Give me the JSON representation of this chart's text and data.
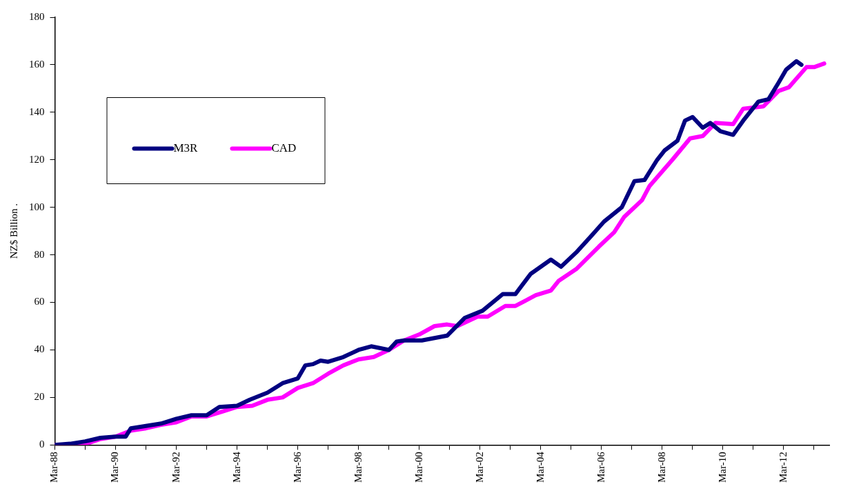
{
  "chart_data": {
    "type": "line",
    "ylabel": "NZ$ Billion .",
    "xlim": [
      "1988-03",
      "2013-09"
    ],
    "ylim": [
      0,
      180
    ],
    "yticks": [
      0,
      20,
      40,
      60,
      80,
      100,
      120,
      140,
      160,
      180
    ],
    "xticks": [
      {
        "value": "1988-03",
        "label": "Mar-88"
      },
      {
        "value": "1989-03",
        "label": null
      },
      {
        "value": "1990-03",
        "label": "Mar-90"
      },
      {
        "value": "1991-03",
        "label": null
      },
      {
        "value": "1992-03",
        "label": "Mar-92"
      },
      {
        "value": "1993-03",
        "label": null
      },
      {
        "value": "1994-03",
        "label": "Mar-94"
      },
      {
        "value": "1995-03",
        "label": null
      },
      {
        "value": "1996-03",
        "label": "Mar-96"
      },
      {
        "value": "1997-03",
        "label": null
      },
      {
        "value": "1998-03",
        "label": "Mar-98"
      },
      {
        "value": "1999-03",
        "label": null
      },
      {
        "value": "2000-03",
        "label": "Mar-00"
      },
      {
        "value": "2001-03",
        "label": null
      },
      {
        "value": "2002-03",
        "label": "Mar-02"
      },
      {
        "value": "2003-03",
        "label": null
      },
      {
        "value": "2004-03",
        "label": "Mar-04"
      },
      {
        "value": "2005-03",
        "label": null
      },
      {
        "value": "2006-03",
        "label": "Mar-06"
      },
      {
        "value": "2007-03",
        "label": null
      },
      {
        "value": "2008-03",
        "label": "Mar-08"
      },
      {
        "value": "2009-03",
        "label": null
      },
      {
        "value": "2010-03",
        "label": "Mar-10"
      },
      {
        "value": "2011-03",
        "label": null
      },
      {
        "value": "2012-03",
        "label": "Mar-12"
      },
      {
        "value": "2013-03",
        "label": null
      }
    ],
    "grid": false,
    "legend": "top left",
    "marker": "none",
    "line_style": "solid",
    "series": [
      {
        "name": "M3R",
        "color": "#000080",
        "x": [
          "1988-03",
          "1988-09",
          "1989-03",
          "1989-09",
          "1990-03",
          "1990-07",
          "1990-09",
          "1991-03",
          "1991-09",
          "1992-03",
          "1992-09",
          "1993-03",
          "1993-08",
          "1994-03",
          "1994-08",
          "1995-03",
          "1995-09",
          "1996-03",
          "1996-06",
          "1996-09",
          "1996-12",
          "1997-03",
          "1997-09",
          "1998-03",
          "1998-08",
          "1999-03",
          "1999-06",
          "1999-09",
          "2000-04",
          "2000-09",
          "2001-02",
          "2001-09",
          "2002-04",
          "2002-12",
          "2003-05",
          "2003-11",
          "2004-07",
          "2004-11",
          "2005-05",
          "2005-11",
          "2006-04",
          "2006-11",
          "2007-04",
          "2007-08",
          "2008-01",
          "2008-04",
          "2008-09",
          "2008-12",
          "2009-03",
          "2009-07",
          "2009-10",
          "2010-02",
          "2010-07",
          "2010-11",
          "2011-05",
          "2011-09",
          "2012-01",
          "2012-04",
          "2012-08",
          "2012-10"
        ],
        "values": [
          0,
          0.5,
          1.5,
          3,
          3.5,
          3.5,
          7,
          8,
          9,
          11,
          12.5,
          12.5,
          16,
          16.5,
          19,
          22,
          26,
          28,
          33.5,
          34,
          35.5,
          35,
          37,
          40,
          41.5,
          40,
          43.5,
          44,
          44,
          45,
          46,
          53.5,
          56.5,
          63.5,
          63.5,
          72,
          78,
          75,
          81,
          88,
          94,
          100,
          111,
          111.5,
          120,
          124,
          128,
          136.5,
          138,
          133.5,
          135.5,
          132,
          130.5,
          136.5,
          144.5,
          145.5,
          152.5,
          158,
          161.5,
          160
        ]
      },
      {
        "name": "CAD",
        "color": "#ff00ff",
        "x": [
          "1988-03",
          "1989-03",
          "1989-09",
          "1990-03",
          "1990-09",
          "1991-03",
          "1991-09",
          "1992-03",
          "1992-09",
          "1993-03",
          "1993-09",
          "1994-03",
          "1994-09",
          "1995-03",
          "1995-09",
          "1996-03",
          "1996-09",
          "1997-03",
          "1997-09",
          "1998-03",
          "1998-09",
          "1999-03",
          "1999-09",
          "2000-03",
          "2000-09",
          "2001-02",
          "2001-06",
          "2002-02",
          "2002-06",
          "2003-01",
          "2003-05",
          "2004-01",
          "2004-07",
          "2004-10",
          "2005-05",
          "2006-02",
          "2006-08",
          "2006-12",
          "2007-07",
          "2007-10",
          "2008-07",
          "2009-02",
          "2009-07",
          "2009-12",
          "2010-07",
          "2010-11",
          "2011-07",
          "2012-01",
          "2012-05",
          "2012-12",
          "2013-03",
          "2013-07"
        ],
        "values": [
          0,
          0.3,
          2.5,
          3.5,
          6,
          7,
          8.5,
          9.5,
          12,
          12,
          14,
          16,
          16.5,
          19,
          20,
          24,
          26,
          30,
          33.5,
          36,
          37,
          40,
          44,
          46.5,
          50,
          50.7,
          50,
          54,
          54,
          58.5,
          58.5,
          63,
          65,
          69,
          74,
          83.5,
          89.5,
          96,
          103,
          109,
          120,
          129,
          130,
          135.5,
          135,
          141.5,
          142.5,
          149,
          150.5,
          159,
          159,
          160.5
        ]
      }
    ]
  }
}
